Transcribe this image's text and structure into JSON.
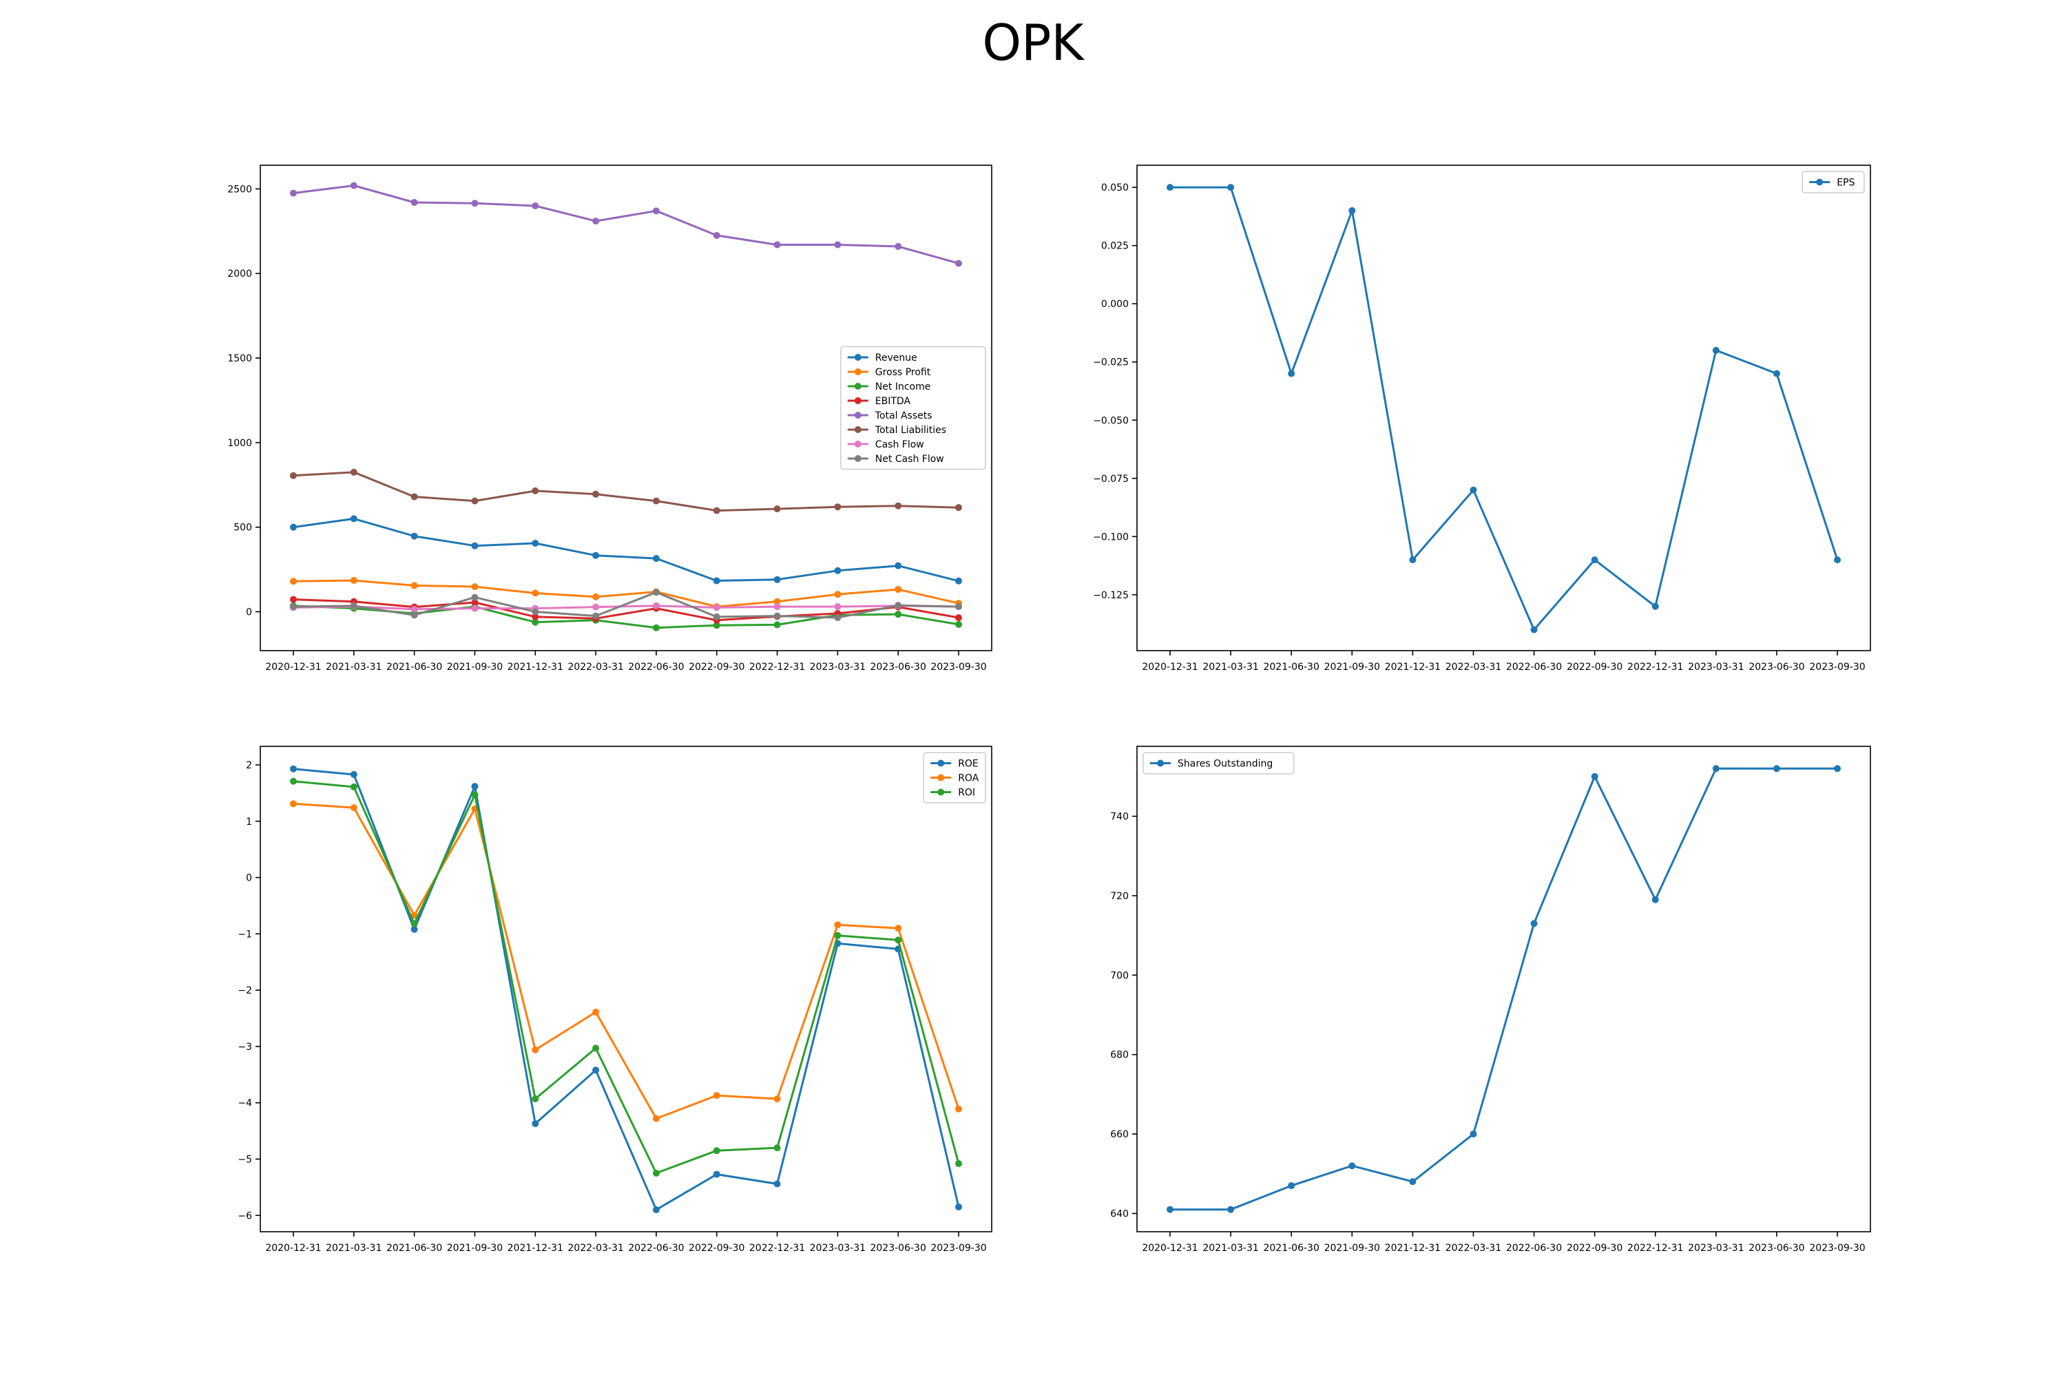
{
  "title": "OPK",
  "chart_data": [
    {
      "type": "line",
      "x": [
        "2020-12-31",
        "2021-03-31",
        "2021-06-30",
        "2021-09-30",
        "2021-12-31",
        "2022-03-31",
        "2022-06-30",
        "2022-09-30",
        "2022-12-31",
        "2023-03-31",
        "2023-06-30",
        "2023-09-30"
      ],
      "yticks": [
        0,
        500,
        1000,
        1500,
        2000,
        2500
      ],
      "ylim": [
        -230,
        2640
      ],
      "legend": "center-right",
      "series": [
        {
          "name": "Revenue",
          "color": "#1f77b4",
          "values": [
            500,
            550,
            447,
            390,
            405,
            333,
            315,
            183,
            190,
            243,
            272,
            182
          ]
        },
        {
          "name": "Gross Profit",
          "color": "#ff7f0e",
          "values": [
            180,
            185,
            155,
            148,
            110,
            88,
            118,
            30,
            60,
            103,
            132,
            50
          ]
        },
        {
          "name": "Net Income",
          "color": "#2ca02c",
          "values": [
            35,
            20,
            -10,
            30,
            -62,
            -50,
            -95,
            -80,
            -77,
            -20,
            -15,
            -75
          ]
        },
        {
          "name": "EBITDA",
          "color": "#d62728",
          "values": [
            73,
            60,
            28,
            55,
            -30,
            -40,
            20,
            -50,
            -28,
            -10,
            28,
            -35
          ]
        },
        {
          "name": "Total Assets",
          "color": "#9467bd",
          "values": [
            2475,
            2520,
            2420,
            2415,
            2400,
            2310,
            2370,
            2225,
            2170,
            2170,
            2160,
            2060
          ]
        },
        {
          "name": "Total Liabilities",
          "color": "#8c564b",
          "values": [
            805,
            825,
            680,
            655,
            715,
            695,
            655,
            598,
            608,
            620,
            626,
            616
          ]
        },
        {
          "name": "Cash Flow",
          "color": "#e377c2",
          "values": [
            25,
            30,
            15,
            20,
            20,
            28,
            35,
            25,
            30,
            30,
            35,
            30
          ]
        },
        {
          "name": "Net Cash Flow",
          "color": "#7f7f7f",
          "values": [
            30,
            35,
            -20,
            85,
            0,
            -25,
            115,
            -30,
            -25,
            -35,
            38,
            30
          ]
        }
      ]
    },
    {
      "type": "line",
      "x": [
        "2020-12-31",
        "2021-03-31",
        "2021-06-30",
        "2021-09-30",
        "2021-12-31",
        "2022-03-31",
        "2022-06-30",
        "2022-09-30",
        "2022-12-31",
        "2023-03-31",
        "2023-06-30",
        "2023-09-30"
      ],
      "yticks": [
        0.05,
        0.025,
        0.0,
        -0.025,
        -0.05,
        -0.075,
        -0.1,
        -0.125
      ],
      "ytick_labels": [
        "0.050",
        "0.025",
        "0.000",
        "−0.025",
        "−0.050",
        "−0.075",
        "−0.100",
        "−0.125"
      ],
      "ylim": [
        -0.149,
        0.0595
      ],
      "legend": "top-right",
      "series": [
        {
          "name": "EPS",
          "color": "#1f77b4",
          "values": [
            0.05,
            0.05,
            -0.03,
            0.04,
            -0.11,
            -0.08,
            -0.14,
            -0.11,
            -0.13,
            -0.02,
            -0.03,
            -0.11
          ]
        }
      ]
    },
    {
      "type": "line",
      "x": [
        "2020-12-31",
        "2021-03-31",
        "2021-06-30",
        "2021-09-30",
        "2021-12-31",
        "2022-03-31",
        "2022-06-30",
        "2022-09-30",
        "2022-12-31",
        "2023-03-31",
        "2023-06-30",
        "2023-09-30"
      ],
      "yticks": [
        2,
        1,
        0,
        -1,
        -2,
        -3,
        -4,
        -5,
        -6
      ],
      "ytick_labels": [
        "2",
        "1",
        "0",
        "−1",
        "−2",
        "−3",
        "−4",
        "−5",
        "−6"
      ],
      "ylim": [
        -6.29,
        2.33
      ],
      "legend": "top-right",
      "series": [
        {
          "name": "ROE",
          "color": "#1f77b4",
          "values": [
            1.93,
            1.83,
            -0.92,
            1.62,
            -4.37,
            -3.42,
            -5.9,
            -5.27,
            -5.44,
            -1.17,
            -1.27,
            -5.85
          ]
        },
        {
          "name": "ROA",
          "color": "#ff7f0e",
          "values": [
            1.31,
            1.24,
            -0.67,
            1.22,
            -3.06,
            -2.39,
            -4.28,
            -3.87,
            -3.93,
            -0.84,
            -0.9,
            -4.11
          ]
        },
        {
          "name": "ROI",
          "color": "#2ca02c",
          "values": [
            1.71,
            1.61,
            -0.82,
            1.47,
            -3.93,
            -3.03,
            -5.25,
            -4.85,
            -4.8,
            -1.03,
            -1.11,
            -5.08
          ]
        }
      ]
    },
    {
      "type": "line",
      "x": [
        "2020-12-31",
        "2021-03-31",
        "2021-06-30",
        "2021-09-30",
        "2021-12-31",
        "2022-03-31",
        "2022-06-30",
        "2022-09-30",
        "2022-12-31",
        "2023-03-31",
        "2023-06-30",
        "2023-09-30"
      ],
      "yticks": [
        640,
        660,
        680,
        700,
        720,
        740
      ],
      "ylim": [
        635.4,
        757.6
      ],
      "legend": "top-left",
      "series": [
        {
          "name": "Shares Outstanding",
          "color": "#1f77b4",
          "values": [
            641,
            641,
            647,
            652,
            648,
            660,
            713,
            750,
            719,
            752,
            752,
            752
          ]
        }
      ]
    }
  ]
}
